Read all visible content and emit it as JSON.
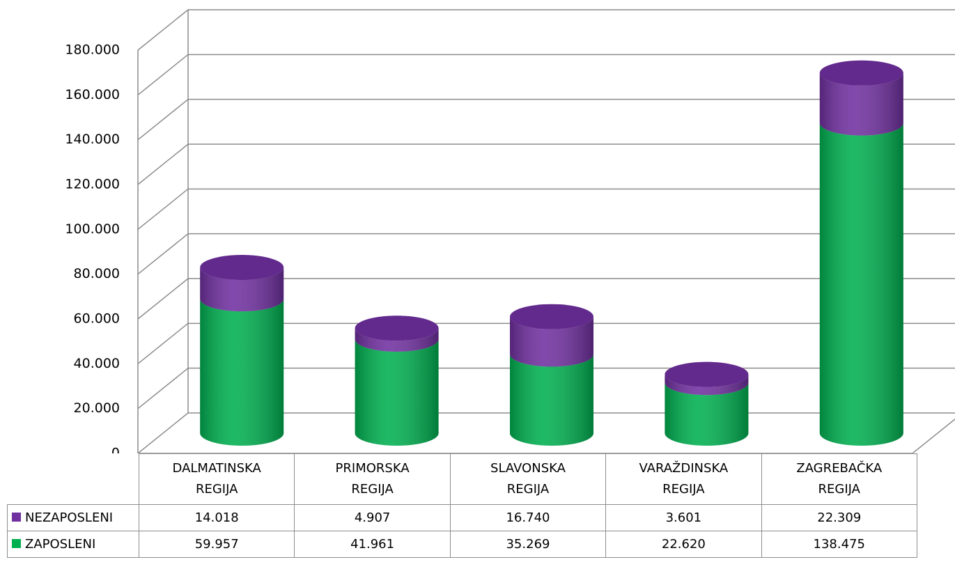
{
  "chart_data": {
    "type": "bar",
    "categories": [
      "DALMATINSKA REGIJA",
      "PRIMORSKA REGIJA",
      "SLAVONSKA REGIJA",
      "VARAŽDINSKA REGIJA",
      "ZAGREBAČKA REGIJA"
    ],
    "series": [
      {
        "name": "NEZAPOSLENI",
        "color": "#7030a0",
        "values": [
          14018,
          4907,
          16740,
          3601,
          22309
        ],
        "value_labels": [
          "14.018",
          "4.907",
          "16.740",
          "3.601",
          "22.309"
        ]
      },
      {
        "name": "ZAPOSLENI",
        "color": "#00b050",
        "values": [
          59957,
          41961,
          35269,
          22620,
          138475
        ],
        "value_labels": [
          "59.957",
          "41.961",
          "35.269",
          "22.620",
          "138.475"
        ]
      }
    ],
    "ylim": [
      0,
      180000
    ],
    "yticks": [
      0,
      {
        "value": 20000,
        "label": "20.000"
      },
      {
        "value": 40000,
        "label": "40.000"
      },
      {
        "value": 60000,
        "label": "60.000"
      },
      {
        "value": 80000,
        "label": "80.000"
      },
      {
        "value": 100000,
        "label": "100.000"
      },
      {
        "value": 120000,
        "label": "120.000"
      },
      {
        "value": 140000,
        "label": "140.000"
      },
      {
        "value": 160000,
        "label": "160.000"
      },
      {
        "value": 180000,
        "label": "180.000"
      }
    ],
    "grid": true,
    "stacked": true
  }
}
